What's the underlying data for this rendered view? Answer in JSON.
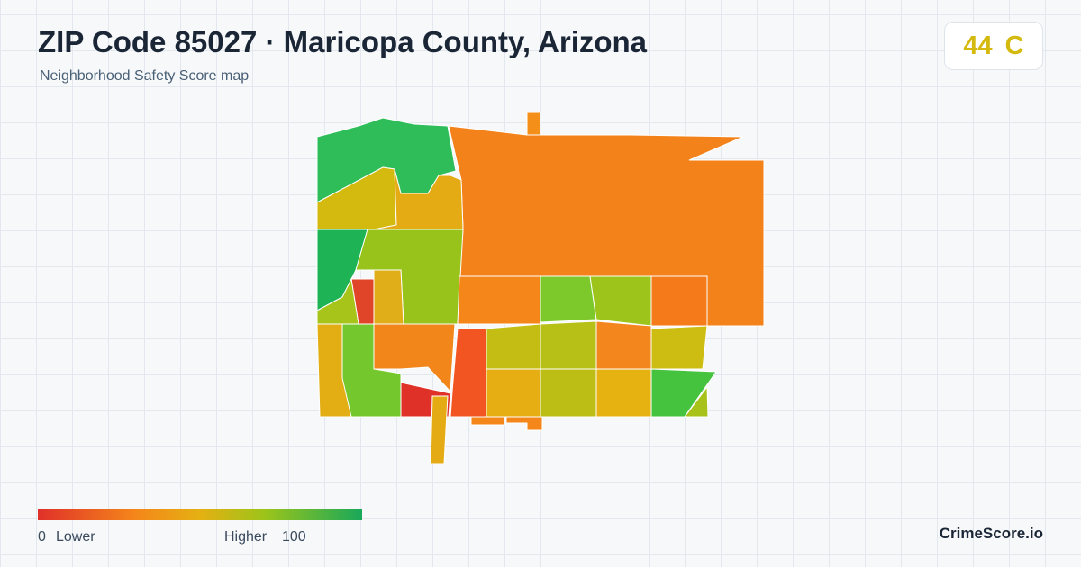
{
  "header": {
    "title": "ZIP Code 85027 · Maricopa County, Arizona",
    "subtitle": "Neighborhood Safety Score map"
  },
  "score": {
    "value": "44",
    "grade": "C"
  },
  "legend": {
    "min": "0",
    "min_label": "Lower",
    "max_label": "Higher",
    "max": "100"
  },
  "brand": "CrimeScore.io"
}
